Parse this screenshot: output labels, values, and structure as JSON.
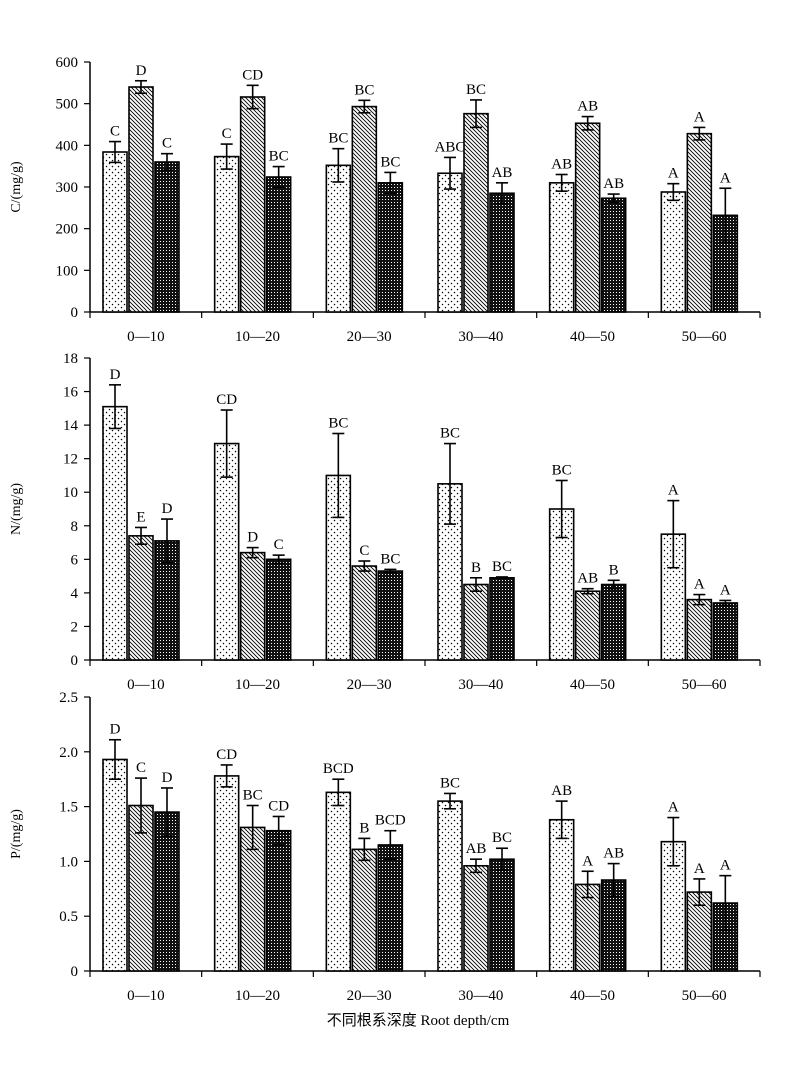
{
  "figure_xlabel": "不同根系深度 Root depth/cm",
  "chart_data": [
    {
      "type": "bar",
      "ylabel": "C/(mg/g)",
      "ylim": [
        0,
        600
      ],
      "yticks": [
        "0",
        "100",
        "200",
        "300",
        "400",
        "500",
        "600"
      ],
      "categories": [
        "0—10",
        "10—20",
        "20—30",
        "30—40",
        "40—50",
        "50—60"
      ],
      "series": [
        {
          "pattern": "dots",
          "values": [
            384,
            373,
            352,
            333,
            310,
            288
          ],
          "errors": [
            25,
            30,
            40,
            38,
            20,
            20
          ],
          "letters": [
            "C",
            "C",
            "BC",
            "ABC",
            "AB",
            "A"
          ]
        },
        {
          "pattern": "diagonal",
          "values": [
            540,
            516,
            493,
            476,
            453,
            428
          ],
          "errors": [
            15,
            28,
            15,
            33,
            16,
            15
          ],
          "letters": [
            "D",
            "CD",
            "BC",
            "BC",
            "AB",
            "A"
          ]
        },
        {
          "pattern": "crosshatch",
          "values": [
            360,
            324,
            310,
            285,
            273,
            232
          ],
          "errors": [
            20,
            25,
            25,
            25,
            10,
            65
          ],
          "letters": [
            "C",
            "BC",
            "BC",
            "AB",
            "AB",
            "A"
          ]
        }
      ]
    },
    {
      "type": "bar",
      "ylabel": "N/(mg/g)",
      "ylim": [
        0,
        18
      ],
      "yticks": [
        "0",
        "2",
        "4",
        "6",
        "8",
        "10",
        "12",
        "14",
        "16",
        "18"
      ],
      "categories": [
        "0—10",
        "10—20",
        "20—30",
        "30—40",
        "40—50",
        "50—60"
      ],
      "series": [
        {
          "pattern": "dots",
          "values": [
            15.1,
            12.9,
            11.0,
            10.5,
            9.0,
            7.5
          ],
          "errors": [
            1.3,
            2.0,
            2.5,
            2.4,
            1.7,
            2.0
          ],
          "letters": [
            "D",
            "CD",
            "BC",
            "BC",
            "BC",
            "A"
          ]
        },
        {
          "pattern": "diagonal",
          "values": [
            7.4,
            6.4,
            5.6,
            4.5,
            4.1,
            3.6
          ],
          "errors": [
            0.5,
            0.3,
            0.3,
            0.4,
            0.15,
            0.3
          ],
          "letters": [
            "E",
            "D",
            "C",
            "B",
            "AB",
            "A"
          ]
        },
        {
          "pattern": "crosshatch",
          "values": [
            7.1,
            6.0,
            5.3,
            4.9,
            4.5,
            3.4
          ],
          "errors": [
            1.3,
            0.25,
            0.1,
            0.05,
            0.25,
            0.15
          ],
          "letters": [
            "D",
            "C",
            "BC",
            "BC",
            "B",
            "A"
          ]
        }
      ]
    },
    {
      "type": "bar",
      "ylabel": "P/(mg/g)",
      "ylim": [
        0,
        2.5
      ],
      "yticks": [
        "0",
        "0.5",
        "1.0",
        "1.5",
        "2.0",
        "2.5"
      ],
      "categories": [
        "0—10",
        "10—20",
        "20—30",
        "30—40",
        "40—50",
        "50—60"
      ],
      "series": [
        {
          "pattern": "dots",
          "values": [
            1.93,
            1.78,
            1.63,
            1.55,
            1.38,
            1.18
          ],
          "errors": [
            0.18,
            0.1,
            0.12,
            0.07,
            0.17,
            0.22
          ],
          "letters": [
            "D",
            "CD",
            "BCD",
            "BC",
            "AB",
            "A"
          ]
        },
        {
          "pattern": "diagonal",
          "values": [
            1.51,
            1.31,
            1.11,
            0.96,
            0.79,
            0.72
          ],
          "errors": [
            0.25,
            0.2,
            0.1,
            0.06,
            0.12,
            0.12
          ],
          "letters": [
            "C",
            "BC",
            "B",
            "AB",
            "A",
            "A"
          ]
        },
        {
          "pattern": "crosshatch",
          "values": [
            1.45,
            1.28,
            1.15,
            1.02,
            0.83,
            0.62
          ],
          "errors": [
            0.22,
            0.13,
            0.13,
            0.1,
            0.15,
            0.25
          ],
          "letters": [
            "D",
            "CD",
            "BCD",
            "BC",
            "AB",
            "A"
          ]
        }
      ]
    }
  ]
}
